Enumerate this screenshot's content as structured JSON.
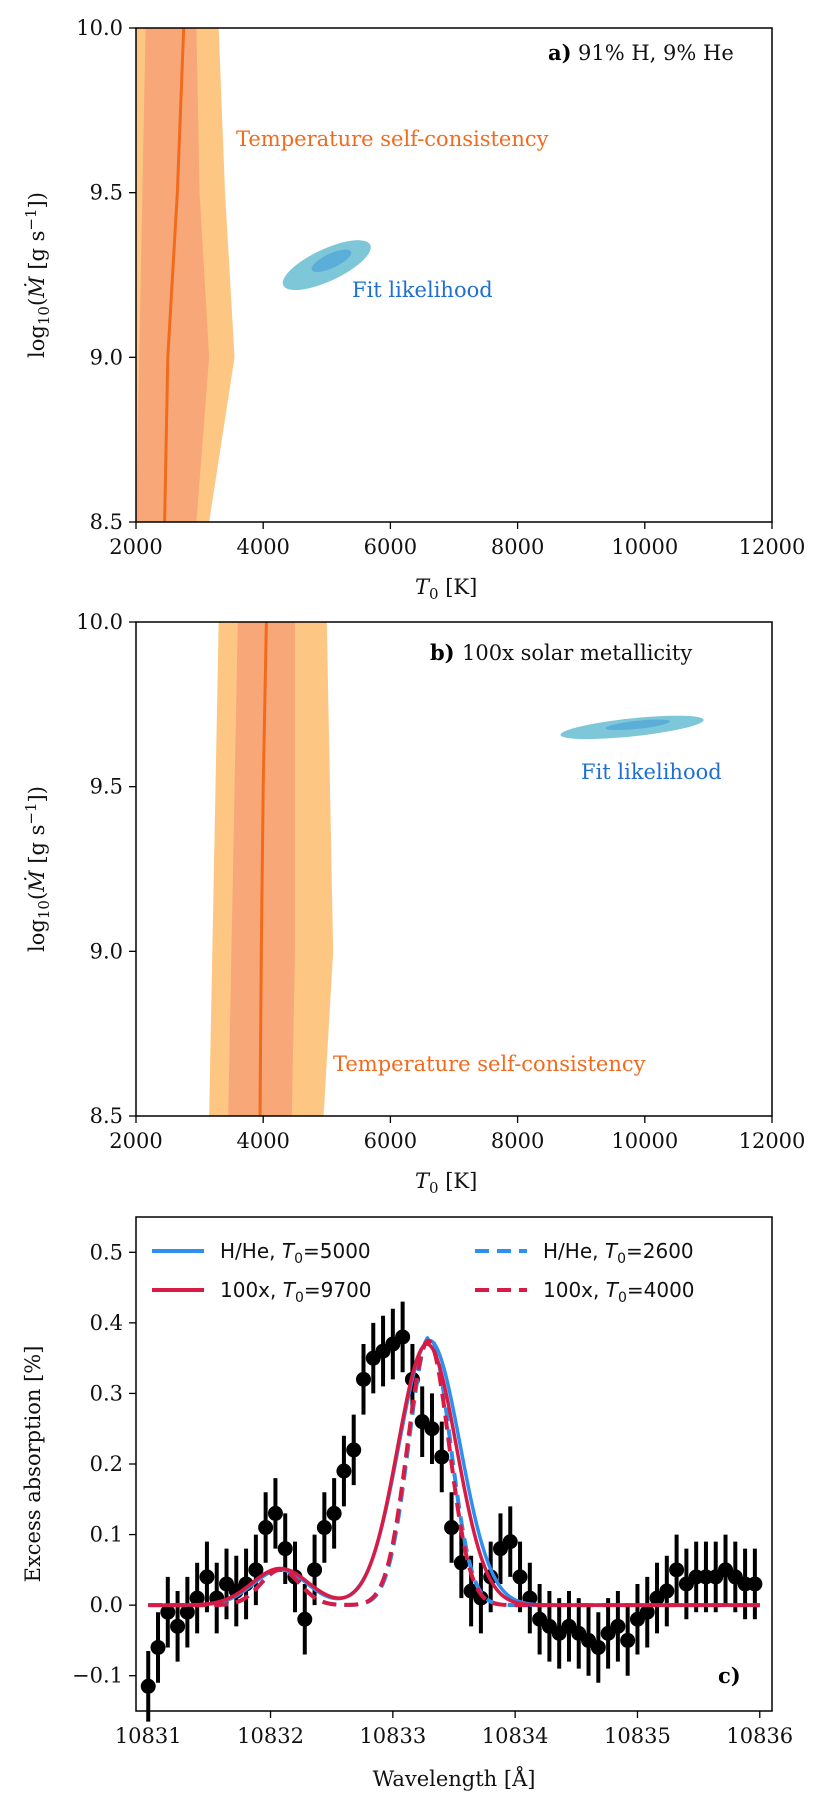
{
  "chart_data": [
    {
      "type": "contour",
      "panel_label": "a)",
      "panel_text": "91% H, 9% He",
      "xlabel_main": "T",
      "xlabel_sub": "0",
      "xlabel_unit": " [K]",
      "ylabel": "log10(Ṁ [g s^-1])",
      "xlim": [
        2000,
        12000
      ],
      "ylim": [
        8.5,
        10.0
      ],
      "xticks": [
        2000,
        4000,
        6000,
        8000,
        10000,
        12000
      ],
      "yticks": [
        8.5,
        9.0,
        9.5,
        10.0
      ],
      "xtick_labels": [
        "2000",
        "4000",
        "6000",
        "8000",
        "10000",
        "12000"
      ],
      "ytick_labels": [
        "8.5",
        "9.0",
        "9.5",
        "10.0"
      ],
      "regions": {
        "outer_left_T": [
          2000,
          2000,
          2000,
          2000
        ],
        "outer_right_T": [
          3150,
          3550,
          3400,
          3300
        ],
        "inner_left_T": [
          2000,
          2050,
          2100,
          2150
        ],
        "inner_right_T": [
          2950,
          3150,
          3000,
          2950
        ],
        "logM_levels": [
          8.5,
          9.0,
          9.5,
          10.0
        ]
      },
      "best_fit_T": [
        2450,
        2500,
        2650,
        2750
      ],
      "best_fit_logM": [
        8.5,
        9.0,
        9.5,
        10.0
      ],
      "likelihood_center": [
        5000,
        9.28
      ],
      "annotations": {
        "temperature": "Temperature self-consistency",
        "fit": "Fit likelihood"
      },
      "colors": {
        "outer": "#fdc783",
        "inner": "#f8a878",
        "line": "#f26b1d",
        "fit_outer": "#7dc7d9",
        "fit_inner": "#5aaed8",
        "temp_text": "#f26b1d",
        "fit_text": "#1f6fd1"
      }
    },
    {
      "type": "contour",
      "panel_label": "b)",
      "panel_text": "100x solar metallicity",
      "xlabel_main": "T",
      "xlabel_sub": "0",
      "xlabel_unit": " [K]",
      "ylabel": "log10(Ṁ [g s^-1])",
      "xlim": [
        2000,
        12000
      ],
      "ylim": [
        8.5,
        10.0
      ],
      "xticks": [
        2000,
        4000,
        6000,
        8000,
        10000,
        12000
      ],
      "yticks": [
        8.5,
        9.0,
        9.5,
        10.0
      ],
      "xtick_labels": [
        "2000",
        "4000",
        "6000",
        "8000",
        "10000",
        "12000"
      ],
      "ytick_labels": [
        "8.5",
        "9.0",
        "9.5",
        "10.0"
      ],
      "regions": {
        "outer_left_T": [
          3150,
          3200,
          3250,
          3300
        ],
        "outer_right_T": [
          4950,
          5100,
          5050,
          5000
        ],
        "inner_left_T": [
          3450,
          3500,
          3550,
          3600
        ],
        "inner_right_T": [
          4450,
          4500,
          4500,
          4500
        ],
        "logM_levels": [
          8.5,
          9.0,
          9.5,
          10.0
        ]
      },
      "best_fit_T": [
        3950,
        3970,
        4000,
        4050
      ],
      "best_fit_logM": [
        8.5,
        9.0,
        9.5,
        10.0
      ],
      "likelihood_center": [
        9800,
        9.68
      ],
      "annotations": {
        "temperature": "Temperature self-consistency",
        "fit": "Fit likelihood"
      },
      "colors": {
        "outer": "#fdc783",
        "inner": "#f8a878",
        "line": "#f26b1d",
        "fit_outer": "#7dc7d9",
        "fit_inner": "#5aaed8",
        "temp_text": "#f26b1d",
        "fit_text": "#1f6fd1"
      }
    },
    {
      "type": "line",
      "panel_label": "c)",
      "xlabel": "Wavelength [Å]",
      "ylabel": "Excess absorption [%]",
      "xlim": [
        10830.9,
        10836.1
      ],
      "ylim": [
        -0.15,
        0.55
      ],
      "xticks": [
        10831,
        10832,
        10833,
        10834,
        10835,
        10836
      ],
      "yticks": [
        -0.1,
        0.0,
        0.1,
        0.2,
        0.3,
        0.4,
        0.5
      ],
      "xtick_labels": [
        "10831",
        "10832",
        "10833",
        "10834",
        "10835",
        "10836"
      ],
      "ytick_labels": [
        "−0.1",
        "0.0",
        "0.1",
        "0.2",
        "0.3",
        "0.4",
        "0.5"
      ],
      "series": [
        {
          "name": "H/He, T0=5000",
          "label_main": "H/He, T",
          "label_sub": "0",
          "label_tail": "=5000",
          "color": "#2f8ff0",
          "dash": "solid",
          "peak": 0.375,
          "center": 10833.3,
          "sigma": 0.25,
          "sec_amp": 0.05,
          "sec_center": 10832.08,
          "sec_sigma": 0.22
        },
        {
          "name": "100x, T0=9700",
          "label_main": "100x, T",
          "label_sub": "0",
          "label_tail": "=9700",
          "color": "#d81b45",
          "dash": "solid",
          "peak": 0.37,
          "center": 10833.28,
          "sigma": 0.24,
          "sec_amp": 0.052,
          "sec_center": 10832.08,
          "sec_sigma": 0.23
        },
        {
          "name": "H/He, T0=2600",
          "label_main": "H/He, T",
          "label_sub": "0",
          "label_tail": "=2600",
          "color": "#2f8ff0",
          "dash": "dashed",
          "peak": 0.38,
          "center": 10833.3,
          "sigma": 0.17,
          "sec_amp": 0.05,
          "sec_center": 10832.08,
          "sec_sigma": 0.16
        },
        {
          "name": "100x, T0=4000",
          "label_main": "100x, T",
          "label_sub": "0",
          "label_tail": "=4000",
          "color": "#d81b45",
          "dash": "dashed",
          "peak": 0.375,
          "center": 10833.29,
          "sigma": 0.17,
          "sec_amp": 0.05,
          "sec_center": 10832.08,
          "sec_sigma": 0.16
        }
      ],
      "observations": {
        "x": [
          10831.0,
          10831.08,
          10831.16,
          10831.24,
          10831.32,
          10831.4,
          10831.48,
          10831.56,
          10831.64,
          10831.72,
          10831.8,
          10831.88,
          10831.96,
          10832.04,
          10832.12,
          10832.2,
          10832.28,
          10832.36,
          10832.44,
          10832.52,
          10832.6,
          10832.68,
          10832.76,
          10832.84,
          10832.92,
          10833.0,
          10833.08,
          10833.16,
          10833.24,
          10833.32,
          10833.4,
          10833.48,
          10833.56,
          10833.64,
          10833.72,
          10833.8,
          10833.88,
          10833.96,
          10834.04,
          10834.12,
          10834.2,
          10834.28,
          10834.36,
          10834.44,
          10834.52,
          10834.6,
          10834.68,
          10834.76,
          10834.84,
          10834.92,
          10835.0,
          10835.08,
          10835.16,
          10835.24,
          10835.32,
          10835.4,
          10835.48,
          10835.56,
          10835.64,
          10835.72,
          10835.8,
          10835.88,
          10835.96
        ],
        "y": [
          -0.115,
          -0.06,
          -0.01,
          -0.03,
          -0.01,
          0.01,
          0.04,
          0.01,
          0.03,
          0.02,
          0.03,
          0.05,
          0.11,
          0.13,
          0.08,
          0.04,
          -0.02,
          0.05,
          0.11,
          0.13,
          0.19,
          0.22,
          0.32,
          0.35,
          0.36,
          0.37,
          0.38,
          0.32,
          0.26,
          0.25,
          0.21,
          0.11,
          0.06,
          0.02,
          0.01,
          0.04,
          0.08,
          0.09,
          0.04,
          0.01,
          -0.02,
          -0.03,
          -0.04,
          -0.03,
          -0.04,
          -0.05,
          -0.06,
          -0.04,
          -0.03,
          -0.05,
          -0.02,
          -0.01,
          0.01,
          0.02,
          0.05,
          0.03,
          0.04,
          0.04,
          0.04,
          0.05,
          0.04,
          0.03,
          0.03
        ],
        "yerr": 0.05,
        "color": "#000000"
      }
    }
  ]
}
